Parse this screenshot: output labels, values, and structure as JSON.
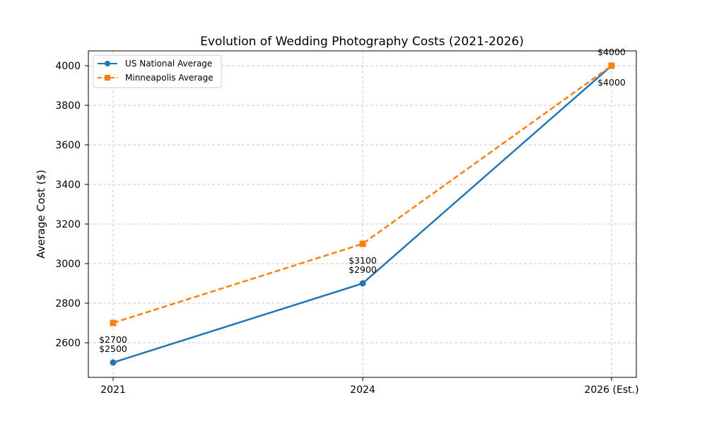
{
  "chart_data": {
    "type": "line",
    "title": "Evolution of Wedding Photography Costs (2021-2026)",
    "xlabel": "",
    "ylabel": "Average Cost ($)",
    "categories": [
      "2021",
      "2024",
      "2026 (Est.)"
    ],
    "series": [
      {
        "name": "US National Average",
        "values": [
          2500,
          2900,
          4000
        ],
        "color": "#1f77b4",
        "style": "solid",
        "marker": "circle",
        "labels": [
          "$2500",
          "$2900",
          "$4000"
        ]
      },
      {
        "name": "Minneapolis Average",
        "values": [
          2700,
          3100,
          4000
        ],
        "color": "#ff7f0e",
        "style": "dashed",
        "marker": "square",
        "labels": [
          "$2700",
          "$3100",
          "$4000"
        ]
      }
    ],
    "yticks": [
      "2600",
      "2800",
      "3000",
      "3200",
      "3400",
      "3600",
      "3800",
      "4000"
    ],
    "ylim": [
      2425,
      4075
    ],
    "grid": true,
    "legend_position": "upper left"
  }
}
